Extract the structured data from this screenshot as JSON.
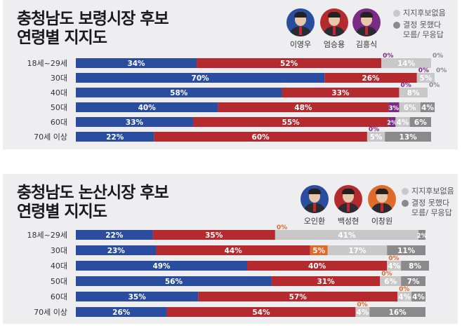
{
  "chart_data": [
    {
      "type": "bar",
      "stacked": true,
      "orientation": "horizontal",
      "title": "충청남도 보령시장 후보\n연령별 지지도",
      "categories": [
        "18세~29세",
        "30대",
        "40대",
        "50대",
        "60대",
        "70세 이상"
      ],
      "candidates": [
        {
          "name": "이영우",
          "color": "#2a4da0"
        },
        {
          "name": "엄승용",
          "color": "#b42a2e"
        },
        {
          "name": "김흥식",
          "color": "#7a2b85"
        }
      ],
      "legend": [
        {
          "label": "지지후보없음",
          "color": "#c8c8c8"
        },
        {
          "label": "결정 못했다\n모름/ 무응답",
          "color": "#8a8a8a"
        }
      ],
      "series": [
        {
          "name": "이영우",
          "color": "#2a4da0",
          "values": [
            34,
            70,
            58,
            40,
            33,
            22
          ]
        },
        {
          "name": "엄승용",
          "color": "#b42a2e",
          "values": [
            52,
            26,
            33,
            48,
            55,
            60
          ]
        },
        {
          "name": "김흥식",
          "color": "#7a2b85",
          "values": [
            0,
            0,
            0,
            3,
            2,
            0
          ]
        },
        {
          "name": "지지후보없음",
          "color": "#c8c8c8",
          "values": [
            14,
            5,
            8,
            6,
            4,
            5
          ]
        },
        {
          "name": "결정 못했다 모름/ 무응답",
          "color": "#8a8a8a",
          "values": [
            0,
            0,
            0,
            4,
            6,
            13
          ]
        }
      ]
    },
    {
      "type": "bar",
      "stacked": true,
      "orientation": "horizontal",
      "title": "충청남도 논산시장 후보\n연령별 지지도",
      "categories": [
        "18세~29세",
        "30대",
        "40대",
        "50대",
        "60대",
        "70세 이상"
      ],
      "candidates": [
        {
          "name": "오인환",
          "color": "#2a4da0"
        },
        {
          "name": "백성현",
          "color": "#b42a2e"
        },
        {
          "name": "이창원",
          "color": "#e06a2a"
        }
      ],
      "legend": [
        {
          "label": "지지후보없음",
          "color": "#c8c8c8"
        },
        {
          "label": "결정 못했다\n모름/ 무응답",
          "color": "#8a8a8a"
        }
      ],
      "series": [
        {
          "name": "오인환",
          "color": "#2a4da0",
          "values": [
            22,
            23,
            49,
            56,
            35,
            26
          ]
        },
        {
          "name": "백성현",
          "color": "#b42a2e",
          "values": [
            35,
            44,
            40,
            31,
            57,
            54
          ]
        },
        {
          "name": "이창원",
          "color": "#e06a2a",
          "values": [
            0,
            5,
            0,
            0,
            0,
            0
          ]
        },
        {
          "name": "지지후보없음",
          "color": "#c8c8c8",
          "values": [
            41,
            17,
            4,
            6,
            4,
            4
          ]
        },
        {
          "name": "결정 못했다 모름/ 무응답",
          "color": "#8a8a8a",
          "values": [
            2,
            11,
            8,
            7,
            4,
            16
          ]
        }
      ]
    }
  ]
}
